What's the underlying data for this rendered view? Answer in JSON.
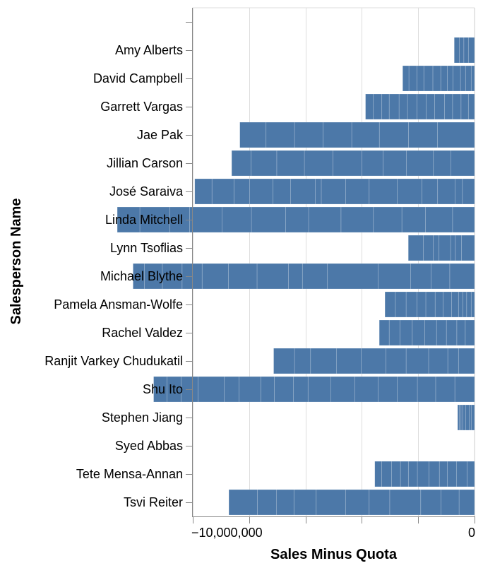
{
  "chart_data": {
    "type": "bar",
    "orientation": "horizontal",
    "stacked": true,
    "xlabel": "Sales Minus Quota",
    "ylabel": "Salesperson Name",
    "xlim": [
      -10000000,
      0
    ],
    "x_tick_labels": [
      "−10,000,000",
      "0"
    ],
    "grid": true,
    "bar_color": "#4c78a8",
    "categories": [
      "",
      "Amy Alberts",
      "David Campbell",
      "Garrett Vargas",
      "Jae Pak",
      "Jillian Carson",
      "José Saraiva",
      "Linda Mitchell",
      "Lynn Tsoflias",
      "Michael Blythe",
      "Pamela Ansman-Wolfe",
      "Rachel Valdez",
      "Ranjit Varkey Chudukatil",
      "Shu Ito",
      "Stephen Jiang",
      "Syed Abbas",
      "Tete Mensa-Annan",
      "Tsvi Reiter"
    ],
    "segments": [
      [],
      [
        -220000,
        -160000,
        -160000,
        -180000
      ],
      [
        -120000,
        -200000,
        -180000,
        -260000,
        -200000,
        -240000,
        -280000,
        -320000,
        -240000,
        -290000,
        -220000
      ],
      [
        -220000,
        -260000,
        -300000,
        -280000,
        -360000,
        -300000,
        -320000,
        -340000,
        -300000,
        -350000,
        -260000,
        -310000,
        -270000
      ],
      [
        -1320000,
        -1020000,
        -1040000,
        -980000,
        -1020000,
        -1010000,
        -1010000,
        -930000
      ],
      [
        -840000,
        -620000,
        -960000,
        -820000,
        -760000,
        -1030000,
        -1010000,
        -980000,
        -910000,
        -690000
      ],
      [
        -430000,
        -260000,
        -620000,
        -560000,
        -870000,
        -1000000,
        -830000,
        -870000,
        -210000,
        -880000,
        -620000,
        -830000,
        -560000,
        -780000,
        -610000
      ],
      [
        -780000,
        -960000,
        -840000,
        -1010000,
        -1150000,
        -1150000,
        -810000,
        -1220000,
        -1040000,
        -1150000,
        -710000,
        -1060000,
        -800000
      ],
      [
        -460000,
        -220000,
        -170000,
        -410000,
        -210000,
        -350000,
        -530000
      ],
      [
        -880000,
        -660000,
        -730000,
        -1150000,
        -1800000,
        -890000,
        -490000,
        -1120000,
        -1010000,
        -940000,
        -710000,
        -700000,
        -640000,
        -400000
      ],
      [
        -120000,
        -160000,
        -130000,
        -160000,
        -240000,
        -300000,
        -290000,
        -330000,
        -310000,
        -390000,
        -380000,
        -370000
      ],
      [
        -330000,
        -300000,
        -370000,
        -350000,
        -420000,
        -440000,
        -440000,
        -380000,
        -350000
      ],
      [
        -570000,
        -380000,
        -680000,
        -800000,
        -710000,
        -880000,
        -880000,
        -920000,
        -570000,
        -740000
      ],
      [
        -700000,
        -680000,
        -650000,
        -710000,
        -680000,
        -830000,
        -850000,
        -810000,
        -520000,
        -680000,
        -480000,
        -770000,
        -520000,
        -930000,
        -600000,
        -510000,
        -470000
      ],
      [
        -120000,
        -70000,
        -130000,
        -100000,
        -60000,
        -60000,
        -60000
      ],
      [],
      [
        -260000,
        -380000,
        -320000,
        -290000,
        -370000,
        -410000,
        -320000,
        -280000,
        -310000,
        -360000,
        -240000
      ],
      [
        -550000,
        -640000,
        -720000,
        -1100000,
        -730000,
        -840000,
        -1040000,
        -790000,
        -620000,
        -680000,
        -1010000
      ]
    ]
  }
}
